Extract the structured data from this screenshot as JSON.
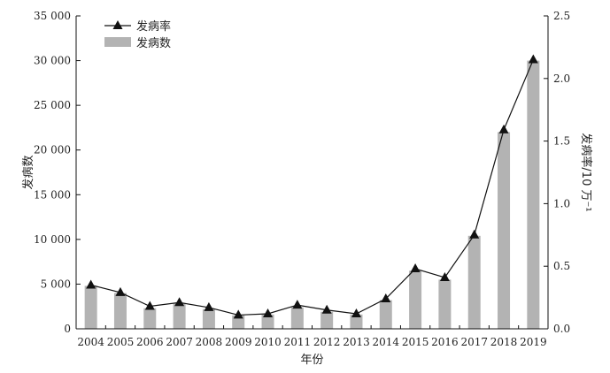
{
  "chart_data": {
    "type": "bar",
    "categories": [
      "2004",
      "2005",
      "2006",
      "2007",
      "2008",
      "2009",
      "2010",
      "2011",
      "2012",
      "2013",
      "2014",
      "2015",
      "2016",
      "2017",
      "2018",
      "2019"
    ],
    "series": [
      {
        "name": "发病数",
        "type": "bar",
        "axis": "left",
        "color": "#b3b3b3",
        "values": [
          4800,
          4000,
          2300,
          2800,
          2200,
          1500,
          1600,
          2400,
          1900,
          1600,
          3200,
          6500,
          5500,
          10400,
          22000,
          30000
        ]
      },
      {
        "name": "发病率",
        "type": "line",
        "axis": "right",
        "color": "#111111",
        "marker": "triangle",
        "values": [
          0.35,
          0.29,
          0.18,
          0.21,
          0.17,
          0.11,
          0.12,
          0.19,
          0.15,
          0.12,
          0.24,
          0.48,
          0.41,
          0.75,
          1.59,
          2.15
        ]
      }
    ],
    "xlabel": "年份",
    "ylabel": "发病数",
    "y2label": "发病率/10 万⁻¹",
    "ylim": [
      0,
      35000
    ],
    "y2lim": [
      0,
      2.5
    ],
    "yticks": [
      "0",
      "5 000",
      "10 000",
      "15 000",
      "20 000",
      "25 000",
      "30 000",
      "35 000"
    ],
    "y2ticks": [
      "0.0",
      "0.5",
      "1.0",
      "1.5",
      "2.0",
      "2.5"
    ],
    "legend": {
      "position": "top-left",
      "entries": [
        "发病率",
        "发病数"
      ]
    },
    "grid": false
  }
}
